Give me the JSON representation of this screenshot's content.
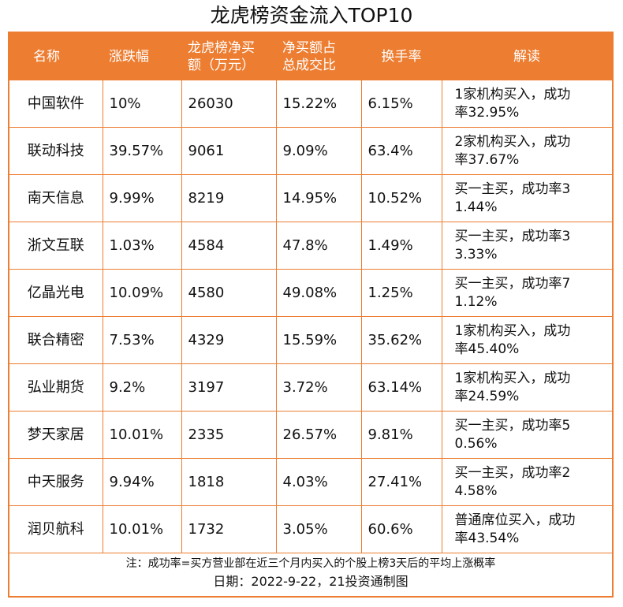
{
  "title": "龙虎榜资金流入TOP10",
  "headers": {
    "name": "名称",
    "change": "涨跌幅",
    "net_buy_line1": "龙虎榜净买",
    "net_buy_line2": "额（万元）",
    "ratio_line1": "净买额占",
    "ratio_line2": "总成交比",
    "turnover": "换手率",
    "note": "解读"
  },
  "chart_data": {
    "type": "table",
    "title": "龙虎榜资金流入TOP10",
    "columns": [
      "名称",
      "涨跌幅",
      "龙虎榜净买额（万元）",
      "净买额占总成交比",
      "换手率",
      "解读"
    ],
    "rows": [
      {
        "name": "中国软件",
        "change": "10%",
        "net_buy": "26030",
        "ratio": "15.22%",
        "turnover": "6.15%",
        "note_line1": "1家机构买入，成功",
        "note_line2": "率32.95%"
      },
      {
        "name": "联动科技",
        "change": "39.57%",
        "net_buy": "9061",
        "ratio": "9.09%",
        "turnover": "63.4%",
        "note_line1": "2家机构买入，成功",
        "note_line2": "率37.67%"
      },
      {
        "name": "南天信息",
        "change": "9.99%",
        "net_buy": "8219",
        "ratio": "14.95%",
        "turnover": "10.52%",
        "note_line1": "买一主买，成功率3",
        "note_line2": "1.44%"
      },
      {
        "name": "浙文互联",
        "change": "1.03%",
        "net_buy": "4584",
        "ratio": "47.8%",
        "turnover": "1.49%",
        "note_line1": "买一主买，成功率3",
        "note_line2": "3.33%"
      },
      {
        "name": "亿晶光电",
        "change": "10.09%",
        "net_buy": "4580",
        "ratio": "49.08%",
        "turnover": "1.25%",
        "note_line1": "买一主买，成功率7",
        "note_line2": "1.12%"
      },
      {
        "name": "联合精密",
        "change": "7.53%",
        "net_buy": "4329",
        "ratio": "15.59%",
        "turnover": "35.62%",
        "note_line1": "1家机构买入，成功",
        "note_line2": "率45.40%"
      },
      {
        "name": "弘业期货",
        "change": "9.2%",
        "net_buy": "3197",
        "ratio": "3.72%",
        "turnover": "63.14%",
        "note_line1": "1家机构买入，成功",
        "note_line2": "率24.59%"
      },
      {
        "name": "梦天家居",
        "change": "10.01%",
        "net_buy": "2335",
        "ratio": "26.57%",
        "turnover": "9.81%",
        "note_line1": "买一主买，成功率5",
        "note_line2": "0.56%"
      },
      {
        "name": "中天服务",
        "change": "9.94%",
        "net_buy": "1818",
        "ratio": "4.03%",
        "turnover": "27.41%",
        "note_line1": "买一主买，成功率2",
        "note_line2": "4.58%"
      },
      {
        "name": "润贝航科",
        "change": "10.01%",
        "net_buy": "1732",
        "ratio": "3.05%",
        "turnover": "60.6%",
        "note_line1": "普通席位买入，成功",
        "note_line2": "率43.54%"
      }
    ]
  },
  "footnote": "注：成功率=买方营业部在近三个月内买入的个股上榜3天后的平均上涨概率",
  "credit": "日期：2022-9-22，21投资通制图",
  "colors": {
    "accent": "#ed7d31",
    "header_text": "#ffffff",
    "text": "#111111"
  }
}
